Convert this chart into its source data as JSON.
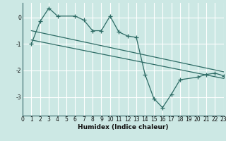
{
  "title": "",
  "xlabel": "Humidex (Indice chaleur)",
  "ylabel": "",
  "bg_color": "#cce8e4",
  "plot_bg_color": "#cce8e4",
  "grid_color": "#ffffff",
  "line_color": "#2d6b65",
  "xlim": [
    0,
    23
  ],
  "ylim": [
    -3.7,
    0.55
  ],
  "yticks": [
    0,
    -1,
    -2,
    -3
  ],
  "xticks": [
    0,
    1,
    2,
    3,
    4,
    5,
    6,
    7,
    8,
    9,
    10,
    11,
    12,
    13,
    14,
    15,
    16,
    17,
    18,
    19,
    20,
    21,
    22,
    23
  ],
  "series1_x": [
    1,
    2,
    3,
    4,
    6,
    7,
    8,
    9,
    10,
    11,
    12,
    13,
    14,
    15,
    16,
    17,
    18,
    20,
    21,
    22,
    23
  ],
  "series1_y": [
    -1.0,
    -0.15,
    0.35,
    0.05,
    0.05,
    -0.1,
    -0.5,
    -0.5,
    0.05,
    -0.55,
    -0.7,
    -0.75,
    -2.15,
    -3.05,
    -3.4,
    -2.9,
    -2.35,
    -2.25,
    -2.15,
    -2.1,
    -2.2
  ],
  "trend1_x": [
    1,
    23
  ],
  "trend1_y": [
    -0.5,
    -2.05
  ],
  "trend2_x": [
    1,
    23
  ],
  "trend2_y": [
    -0.85,
    -2.3
  ],
  "marker_size": 3,
  "line_width": 0.9,
  "tick_fontsize": 5.5,
  "xlabel_fontsize": 6.5
}
